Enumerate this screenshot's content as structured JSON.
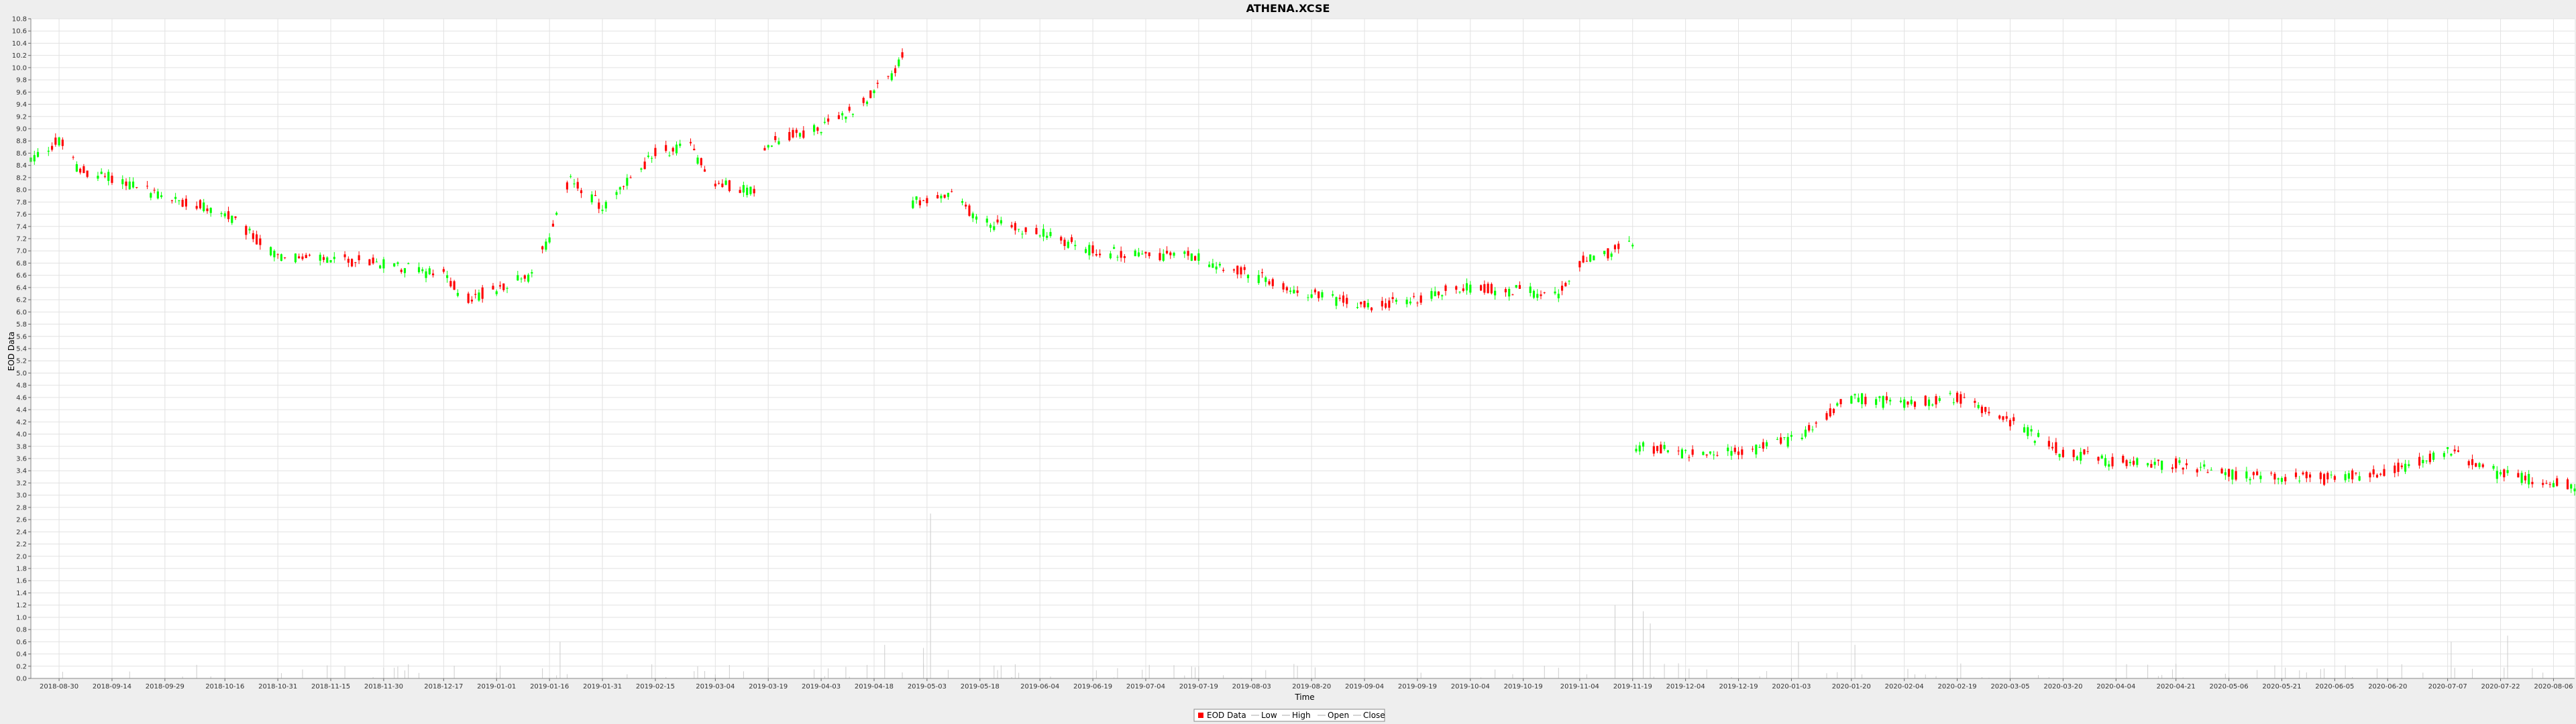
{
  "chart_data": {
    "type": "candlestick",
    "title": "ATHENA.XCSE",
    "xlabel": "Time",
    "ylabel": "EOD Data",
    "ylim": [
      0.0,
      10.8
    ],
    "ytick_step": 0.2,
    "xlim": [
      "2018-08-22",
      "2020-08-12"
    ],
    "grid": true,
    "legend_position": "bottom-center",
    "legend": [
      "EOD Data",
      "Low",
      "High",
      "Open",
      "Close"
    ],
    "colors": {
      "up": "#00ff00",
      "down": "#ff0000",
      "volume": "#cccccc",
      "grid": "#e2e2e2",
      "plot_bg": "#ffffff",
      "page_bg": "#eeeeee"
    },
    "x_tick_labels": [
      "2018-08-30",
      "2018-09-14",
      "2018-09-29",
      "2018-10-16",
      "2018-10-31",
      "2018-11-15",
      "2018-11-30",
      "2018-12-17",
      "2019-01-01",
      "2019-01-16",
      "2019-01-31",
      "2019-02-15",
      "2019-03-04",
      "2019-03-19",
      "2019-04-03",
      "2019-04-18",
      "2019-05-03",
      "2019-05-18",
      "2019-06-04",
      "2019-06-19",
      "2019-07-04",
      "2019-07-19",
      "2019-08-03",
      "2019-08-20",
      "2019-09-04",
      "2019-09-19",
      "2019-10-04",
      "2019-10-19",
      "2019-11-04",
      "2019-11-19",
      "2019-12-04",
      "2019-12-19",
      "2020-01-03",
      "2020-01-20",
      "2020-02-04",
      "2020-02-19",
      "2020-03-05",
      "2020-03-20",
      "2020-04-04",
      "2020-04-21",
      "2020-05-06",
      "2020-05-21",
      "2020-06-05",
      "2020-06-20",
      "2020-07-07",
      "2020-07-22",
      "2020-08-06"
    ],
    "price_keypoints": [
      [
        "2018-08-22",
        8.5
      ],
      [
        "2018-08-30",
        8.8
      ],
      [
        "2018-09-05",
        8.3
      ],
      [
        "2018-09-14",
        8.2
      ],
      [
        "2018-09-29",
        7.9
      ],
      [
        "2018-10-16",
        7.6
      ],
      [
        "2018-10-31",
        6.9
      ],
      [
        "2018-11-15",
        6.85
      ],
      [
        "2018-11-30",
        6.8
      ],
      [
        "2018-12-17",
        6.6
      ],
      [
        "2018-12-24",
        6.2
      ],
      [
        "2019-01-01",
        6.4
      ],
      [
        "2019-01-10",
        6.6
      ],
      [
        "2019-01-16",
        7.2
      ],
      [
        "2019-01-22",
        8.2
      ],
      [
        "2019-01-31",
        7.7
      ],
      [
        "2019-02-15",
        8.6
      ],
      [
        "2019-02-25",
        8.7
      ],
      [
        "2019-03-04",
        8.1
      ],
      [
        "2019-03-15",
        8.0
      ],
      [
        "2019-03-19",
        8.8
      ],
      [
        "2019-04-03",
        9.0
      ],
      [
        "2019-04-12",
        9.3
      ],
      [
        "2019-04-22",
        9.8
      ],
      [
        "2019-04-26",
        10.15
      ],
      [
        "2019-04-29",
        7.8
      ],
      [
        "2019-05-10",
        7.9
      ],
      [
        "2019-05-18",
        7.5
      ],
      [
        "2019-06-04",
        7.3
      ],
      [
        "2019-06-19",
        7.0
      ],
      [
        "2019-07-19",
        6.9
      ],
      [
        "2019-08-03",
        6.6
      ],
      [
        "2019-08-20",
        6.3
      ],
      [
        "2019-09-04",
        6.1
      ],
      [
        "2019-09-19",
        6.2
      ],
      [
        "2019-10-01",
        6.4
      ],
      [
        "2019-10-19",
        6.35
      ],
      [
        "2019-10-28",
        6.25
      ],
      [
        "2019-11-04",
        6.8
      ],
      [
        "2019-11-19",
        7.1
      ],
      [
        "2019-11-20",
        3.8
      ],
      [
        "2019-12-04",
        3.7
      ],
      [
        "2019-12-19",
        3.7
      ],
      [
        "2020-01-03",
        3.9
      ],
      [
        "2020-01-20",
        4.6
      ],
      [
        "2020-02-04",
        4.5
      ],
      [
        "2020-02-19",
        4.6
      ],
      [
        "2020-03-05",
        4.2
      ],
      [
        "2020-03-20",
        3.7
      ],
      [
        "2020-04-04",
        3.55
      ],
      [
        "2020-04-21",
        3.5
      ],
      [
        "2020-05-06",
        3.35
      ],
      [
        "2020-05-21",
        3.3
      ],
      [
        "2020-06-05",
        3.25
      ],
      [
        "2020-06-20",
        3.4
      ],
      [
        "2020-07-07",
        3.7
      ],
      [
        "2020-07-22",
        3.35
      ],
      [
        "2020-08-06",
        3.2
      ],
      [
        "2020-08-12",
        3.15
      ]
    ],
    "volume_spikes": [
      [
        "2019-05-04",
        2.7
      ],
      [
        "2019-11-14",
        1.2
      ],
      [
        "2019-11-19",
        1.6
      ],
      [
        "2019-11-22",
        1.1
      ],
      [
        "2019-11-24",
        0.9
      ],
      [
        "2019-04-21",
        0.55
      ],
      [
        "2019-01-19",
        0.6
      ],
      [
        "2020-01-05",
        0.6
      ],
      [
        "2020-01-21",
        0.55
      ],
      [
        "2020-07-08",
        0.6
      ],
      [
        "2020-07-24",
        0.7
      ],
      [
        "2019-05-02",
        0.5
      ]
    ]
  }
}
